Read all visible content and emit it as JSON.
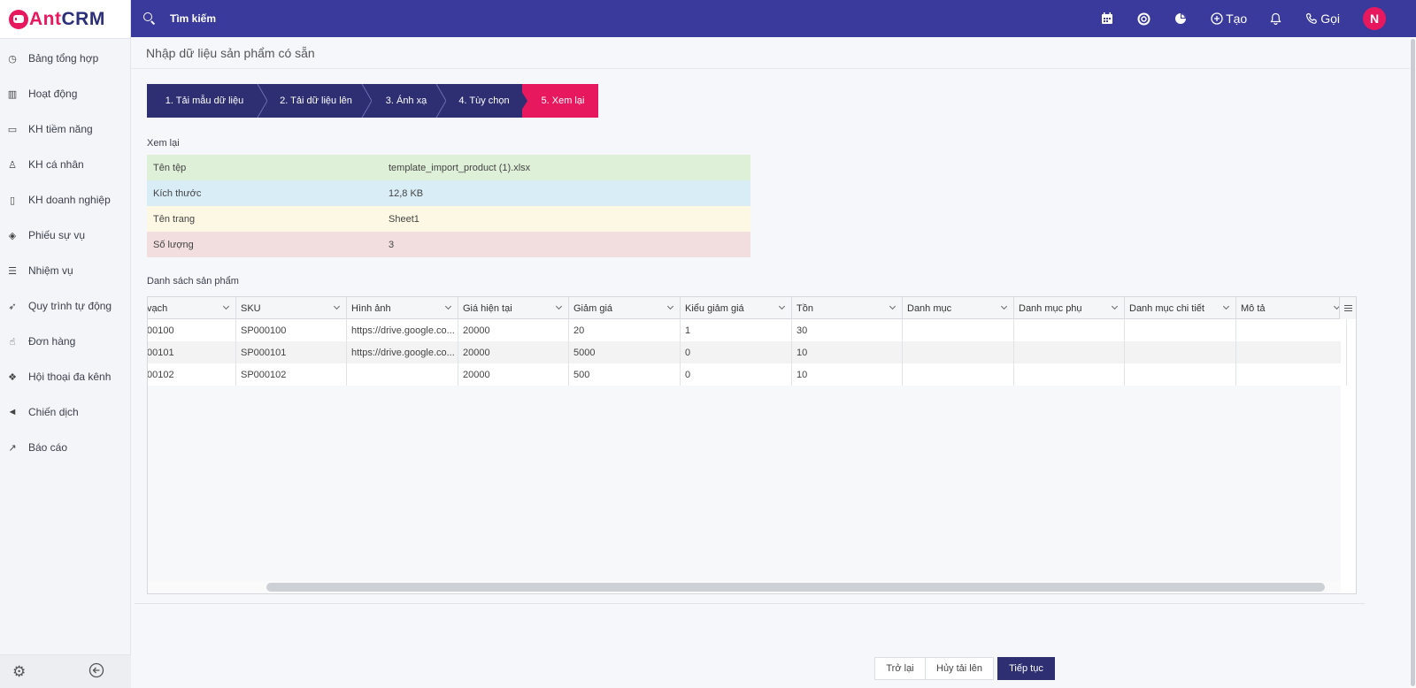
{
  "app": {
    "logo_prefix": "Ant",
    "logo_suffix": "CRM"
  },
  "sidebar": {
    "items": [
      {
        "label": "Bảng tổng hợp",
        "icon": "dashboard-icon"
      },
      {
        "label": "Hoạt động",
        "icon": "bar-chart-icon"
      },
      {
        "label": "KH tiềm năng",
        "icon": "card-icon"
      },
      {
        "label": "KH cá nhân",
        "icon": "person-icon"
      },
      {
        "label": "KH doanh nghiệp",
        "icon": "building-icon"
      },
      {
        "label": "Phiếu sự vụ",
        "icon": "ticket-icon"
      },
      {
        "label": "Nhiệm vụ",
        "icon": "task-list-icon"
      },
      {
        "label": "Quy trình tự động",
        "icon": "rocket-icon"
      },
      {
        "label": "Đơn hàng",
        "icon": "order-icon"
      },
      {
        "label": "Hội thoại đa kênh",
        "icon": "chat-icon"
      },
      {
        "label": "Chiến dịch",
        "icon": "megaphone-icon"
      },
      {
        "label": "Báo cáo",
        "icon": "line-chart-icon"
      }
    ]
  },
  "topbar": {
    "search_label": "Tìm kiếm",
    "create_label": "Tạo",
    "call_label": "Gọi",
    "avatar_initial": "N"
  },
  "page": {
    "title": "Nhập dữ liệu sản phẩm có sẵn"
  },
  "steps": [
    "1. Tải mẫu dữ liệu",
    "2. Tải dữ liệu lên",
    "3. Ánh xạ",
    "4. Tùy chọn",
    "5. Xem lại"
  ],
  "review": {
    "heading": "Xem lại",
    "rows": [
      {
        "key": "Tên tệp",
        "value": "template_import_product (1).xlsx",
        "color": "#dff0d8"
      },
      {
        "key": "Kích thước",
        "value": "12,8 KB",
        "color": "#d9edf7"
      },
      {
        "key": "Tên trang",
        "value": "Sheet1",
        "color": "#fcf8e3"
      },
      {
        "key": "Số lượng",
        "value": "3",
        "color": "#f2dede"
      }
    ]
  },
  "products": {
    "heading": "Danh sách sản phẩm",
    "columns": [
      "vạch",
      "SKU",
      "Hình ảnh",
      "Giá hiện tại",
      "Giảm giá",
      "Kiểu giảm giá",
      "Tồn",
      "Danh mục",
      "Danh mục phụ",
      "Danh mục chi tiết",
      "Mô tả"
    ],
    "rows": [
      [
        "00100",
        "SP000100",
        "https://drive.google.co...",
        "20000",
        "20",
        "1",
        "30",
        "",
        "",
        "",
        ""
      ],
      [
        "00101",
        "SP000101",
        "https://drive.google.co...",
        "20000",
        "5000",
        "0",
        "10",
        "",
        "",
        "",
        ""
      ],
      [
        "00102",
        "SP000102",
        "",
        "20000",
        "500",
        "0",
        "10",
        "",
        "",
        "",
        ""
      ]
    ]
  },
  "buttons": {
    "back": "Trở lại",
    "cancel": "Hủy tải lên",
    "next": "Tiếp tục"
  }
}
